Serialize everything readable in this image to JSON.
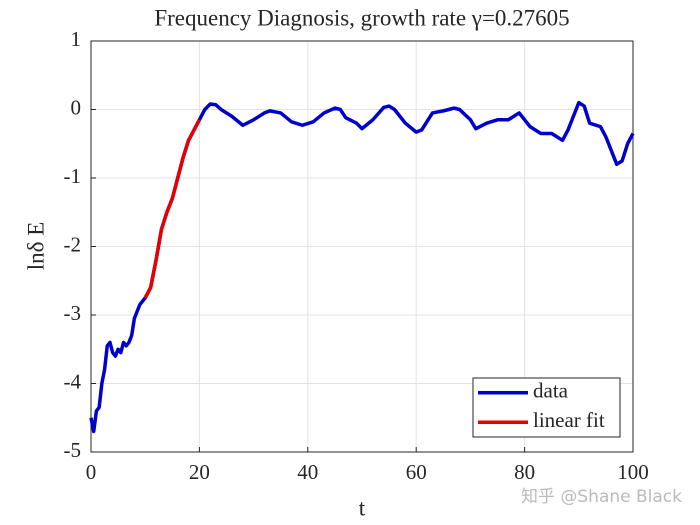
{
  "chart_data": {
    "type": "line",
    "title": "Frequency Diagnosis,  growth rate  γ=0.27605",
    "xlabel": "t",
    "ylabel": "lnδ E",
    "watermark": "知乎 @Shane Black",
    "series": [
      {
        "name": "data",
        "color": "#0000cd",
        "x": [
          0,
          0.5,
          1,
          1.5,
          2,
          2.5,
          3,
          3.5,
          4,
          4.5,
          5,
          5.5,
          6,
          6.5,
          7,
          7.5,
          8,
          9,
          10,
          11,
          12,
          13,
          14,
          15,
          16,
          17,
          18,
          19,
          20,
          21,
          22,
          23,
          24,
          26,
          28,
          30,
          32,
          33,
          35,
          37,
          39,
          41,
          43,
          45,
          46,
          47,
          49,
          50,
          52,
          54,
          55,
          56,
          58,
          60,
          61,
          63,
          65,
          67,
          68,
          70,
          71,
          73,
          75,
          77,
          79,
          81,
          83,
          85,
          87,
          88,
          89,
          90,
          91,
          92,
          94,
          95,
          96,
          97,
          98,
          99,
          100
        ],
        "values": [
          -4.5,
          -4.7,
          -4.4,
          -4.35,
          -4.0,
          -3.8,
          -3.45,
          -3.4,
          -3.55,
          -3.6,
          -3.5,
          -3.55,
          -3.4,
          -3.45,
          -3.4,
          -3.3,
          -3.05,
          -2.85,
          -2.75,
          -2.6,
          -2.2,
          -1.75,
          -1.5,
          -1.3,
          -1.0,
          -0.7,
          -0.45,
          -0.3,
          -0.15,
          0.0,
          0.08,
          0.07,
          0.0,
          -0.1,
          -0.23,
          -0.15,
          -0.05,
          -0.02,
          -0.05,
          -0.18,
          -0.23,
          -0.18,
          -0.05,
          0.02,
          0.0,
          -0.12,
          -0.2,
          -0.28,
          -0.15,
          0.03,
          0.05,
          0.0,
          -0.2,
          -0.33,
          -0.3,
          -0.05,
          -0.02,
          0.02,
          0.0,
          -0.15,
          -0.28,
          -0.2,
          -0.15,
          -0.15,
          -0.05,
          -0.25,
          -0.35,
          -0.35,
          -0.45,
          -0.3,
          -0.1,
          0.1,
          0.05,
          -0.2,
          -0.25,
          -0.4,
          -0.6,
          -0.8,
          -0.75,
          -0.5,
          -0.35
        ]
      },
      {
        "name": "linear fit",
        "color": "#e60000",
        "x": [
          10,
          11,
          12,
          13,
          14,
          15,
          16,
          17,
          18,
          19,
          20
        ],
        "values": [
          -2.75,
          -2.6,
          -2.2,
          -1.75,
          -1.5,
          -1.3,
          -1.0,
          -0.7,
          -0.45,
          -0.3,
          -0.15
        ]
      }
    ],
    "xlim": [
      0,
      100
    ],
    "xticks": [
      0,
      20,
      40,
      60,
      80,
      100
    ],
    "ylim": [
      -5,
      1
    ],
    "yticks": [
      -5,
      -4,
      -3,
      -2,
      -1,
      0,
      1
    ],
    "grid": true,
    "legend": "lower right"
  }
}
